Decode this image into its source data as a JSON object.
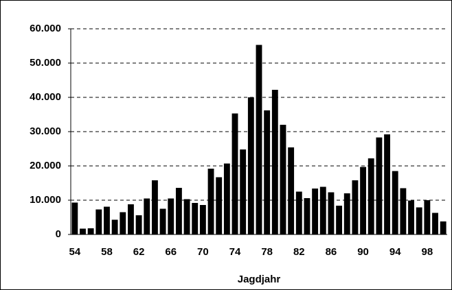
{
  "chart_data": {
    "type": "bar",
    "x_label": "Jagdjahr",
    "categories": [
      "54",
      null,
      null,
      null,
      "58",
      null,
      null,
      null,
      "62",
      null,
      null,
      null,
      "66",
      null,
      null,
      null,
      "70",
      null,
      null,
      null,
      "74",
      null,
      null,
      null,
      "78",
      null,
      null,
      null,
      "82",
      null,
      null,
      null,
      "86",
      null,
      null,
      null,
      "90",
      null,
      null,
      null,
      "94",
      null,
      null,
      null,
      "98",
      null,
      null
    ],
    "values": [
      9300,
      1700,
      1800,
      7300,
      8100,
      4300,
      6500,
      8800,
      5600,
      10500,
      15800,
      7500,
      10500,
      13600,
      10300,
      9200,
      8600,
      19200,
      16700,
      20700,
      35300,
      24800,
      40000,
      55300,
      36200,
      42200,
      32000,
      25400,
      12500,
      10600,
      13400,
      13900,
      12300,
      8400,
      12000,
      15800,
      19700,
      22200,
      28300,
      29200,
      18500,
      13500,
      9900,
      7900,
      10000,
      6300,
      3800
    ],
    "color": "#000000",
    "ylim": [
      0,
      60000
    ],
    "yticks": [
      0,
      {
        "value": 10000,
        "label": "10.000"
      },
      {
        "value": 20000,
        "label": "20.000"
      },
      {
        "value": 30000,
        "label": "30.000"
      },
      {
        "value": 40000,
        "label": "40.000"
      },
      {
        "value": 50000,
        "label": "50.000"
      },
      {
        "value": 60000,
        "label": "60.000"
      }
    ],
    "grid": true
  }
}
